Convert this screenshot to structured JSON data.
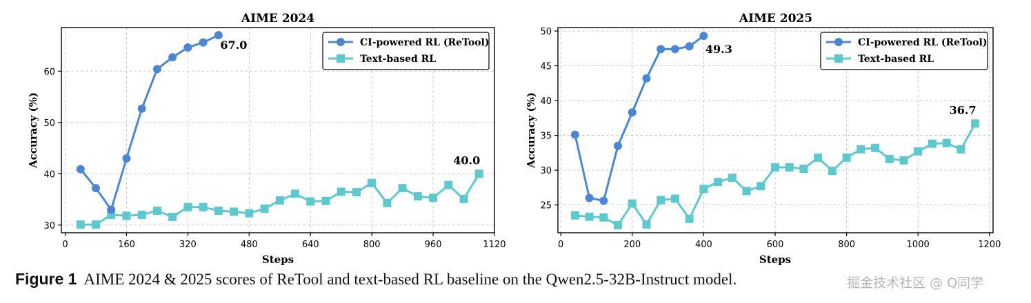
{
  "colors": {
    "ci": "#4a86d2",
    "text": "#5ec8cf",
    "grid": "#c8c8c8"
  },
  "caption": {
    "label": "Figure 1",
    "text": "AIME 2024 & 2025 scores of ReTool and text-based RL baseline on the Qwen2.5-32B-Instruct model."
  },
  "watermark": "掘金技术社区 @ Q同学",
  "chart_data": [
    {
      "type": "line",
      "title": "AIME 2024",
      "xlabel": "Steps",
      "ylabel": "Accuracy (%)",
      "xlim": [
        -10,
        1120
      ],
      "ylim": [
        28.5,
        68.5
      ],
      "xticks": [
        0,
        160,
        320,
        480,
        640,
        800,
        960,
        1120
      ],
      "yticks": [
        30,
        40,
        50,
        60
      ],
      "grid": true,
      "legend_position": "top-right",
      "series": [
        {
          "name": "CI-powered RL (ReTool)",
          "marker": "circle",
          "x": [
            40,
            80,
            120,
            160,
            200,
            240,
            280,
            320,
            360,
            400
          ],
          "y": [
            40.9,
            37.2,
            33.0,
            43.0,
            52.7,
            60.4,
            62.7,
            64.6,
            65.6,
            67.0
          ]
        },
        {
          "name": "Text-based RL",
          "marker": "square",
          "x": [
            40,
            80,
            120,
            160,
            200,
            240,
            280,
            320,
            360,
            400,
            440,
            480,
            520,
            560,
            600,
            640,
            680,
            720,
            760,
            800,
            840,
            880,
            920,
            960,
            1000,
            1040,
            1080
          ],
          "y": [
            30.1,
            30.1,
            32.0,
            31.8,
            32.0,
            32.8,
            31.6,
            33.5,
            33.5,
            32.8,
            32.6,
            32.3,
            33.2,
            34.8,
            36.1,
            34.6,
            34.7,
            36.5,
            36.4,
            38.2,
            34.3,
            37.2,
            35.6,
            35.3,
            37.8,
            35.1,
            40.0
          ]
        }
      ],
      "annotations": [
        {
          "text": "67.0",
          "x": 400,
          "y": 67.0
        },
        {
          "text": "40.0",
          "x": 1080,
          "y": 40.0
        }
      ]
    },
    {
      "type": "line",
      "title": "AIME 2025",
      "xlabel": "Steps",
      "ylabel": "Accuracy (%)",
      "xlim": [
        -8,
        1210
      ],
      "ylim": [
        21.0,
        50.5
      ],
      "xticks": [
        0,
        200,
        400,
        600,
        800,
        1000,
        1200
      ],
      "yticks": [
        25,
        30,
        35,
        40,
        45,
        50
      ],
      "grid": true,
      "legend_position": "top-right",
      "series": [
        {
          "name": "CI-powered RL (ReTool)",
          "marker": "circle",
          "x": [
            40,
            80,
            120,
            160,
            200,
            240,
            280,
            320,
            360,
            400
          ],
          "y": [
            35.1,
            26.0,
            25.6,
            33.5,
            38.3,
            43.2,
            47.4,
            47.4,
            47.8,
            49.3
          ]
        },
        {
          "name": "Text-based RL",
          "marker": "square",
          "x": [
            40,
            80,
            120,
            160,
            200,
            240,
            280,
            320,
            360,
            400,
            440,
            480,
            520,
            560,
            600,
            640,
            680,
            720,
            760,
            800,
            840,
            880,
            920,
            960,
            1000,
            1040,
            1080,
            1120,
            1160
          ],
          "y": [
            23.5,
            23.3,
            23.2,
            22.1,
            25.2,
            22.2,
            25.7,
            25.9,
            23.0,
            27.3,
            28.3,
            28.9,
            27.0,
            27.7,
            30.4,
            30.4,
            30.2,
            31.8,
            29.9,
            31.8,
            33.0,
            33.2,
            31.6,
            31.4,
            32.7,
            33.8,
            33.9,
            33.0,
            36.7
          ]
        }
      ],
      "annotations": [
        {
          "text": "49.3",
          "x": 400,
          "y": 49.3
        },
        {
          "text": "36.7",
          "x": 1160,
          "y": 36.7
        }
      ]
    }
  ]
}
